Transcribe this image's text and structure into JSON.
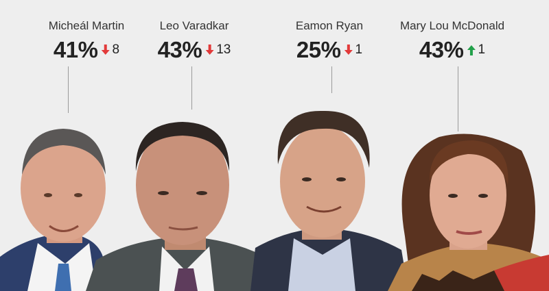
{
  "chart_data": {
    "type": "table",
    "title": "",
    "leaders": [
      {
        "name": "Micheál Martin",
        "rating": "41%",
        "change": "8",
        "direction": "down"
      },
      {
        "name": "Leo Varadkar",
        "rating": "43%",
        "change": "13",
        "direction": "down"
      },
      {
        "name": "Eamon Ryan",
        "rating": "25%",
        "change": "1",
        "direction": "down"
      },
      {
        "name": "Mary Lou McDonald",
        "rating": "43%",
        "change": "1",
        "direction": "up"
      }
    ]
  },
  "colors": {
    "down": "#e23a3a",
    "up": "#22a04a",
    "background": "#eeeeee"
  },
  "icons": {
    "down": "arrow-down-icon",
    "up": "arrow-up-icon"
  }
}
